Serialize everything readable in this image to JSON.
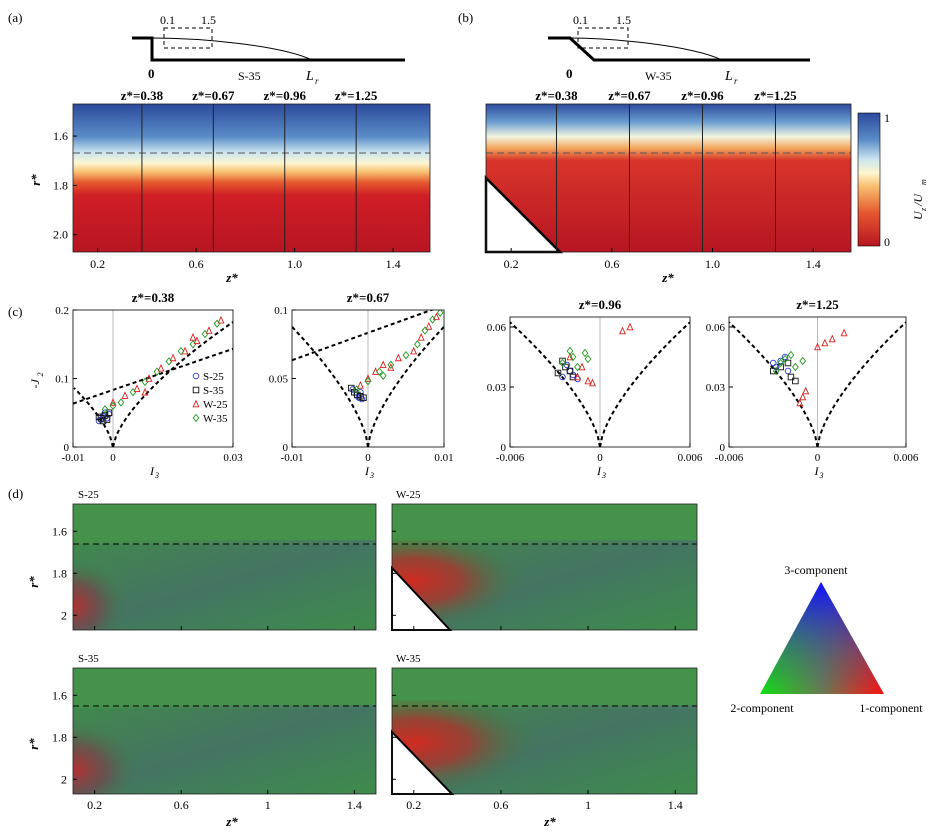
{
  "panel_labels": [
    "(a)",
    "(b)",
    "(c)",
    "(d)"
  ],
  "panel_a": {
    "sketch": {
      "zero": "0",
      "left_mark": "0.1",
      "right_mark": "1.5",
      "case": "S-35",
      "length": "L",
      "length_sub": "r"
    },
    "zstar_labels": [
      "z*=0.38",
      "z*=0.67",
      "z*=0.96",
      "z*=1.25"
    ],
    "xticks": [
      "0.2",
      "0.6",
      "1.0",
      "1.4"
    ],
    "yticks": [
      "1.6",
      "1.8",
      "2.0"
    ],
    "xlabel": "z*",
    "ylabel": "r*"
  },
  "panel_b": {
    "sketch": {
      "zero": "0",
      "left_mark": "0.1",
      "right_mark": "1.5",
      "case": "W-35",
      "length": "L",
      "length_sub": "r"
    },
    "zstar_labels": [
      "z*=0.38",
      "z*=0.67",
      "z*=0.96",
      "z*=1.25"
    ],
    "xticks": [
      "0.2",
      "0.6",
      "1.0",
      "1.4"
    ],
    "xlabel": "z*",
    "colorbar": {
      "ticks": [
        "1",
        "0"
      ],
      "label_main": "U",
      "label_sub1": "z",
      "label_mid": "/U",
      "label_sub2": "m"
    }
  },
  "panel_c": {
    "ylabel": "-J",
    "ylabel_sub": "2",
    "xlabel": "I",
    "xlabel_sub": "3",
    "legend": [
      "S-25",
      "S-35",
      "W-25",
      "W-35"
    ]
  },
  "panel_d": {
    "titles": [
      "S-25",
      "W-25",
      "S-35",
      "W-35"
    ],
    "xticks": [
      "0.2",
      "0.6",
      "1",
      "1.4"
    ],
    "yticks": [
      "1.6",
      "1.8",
      "2"
    ],
    "xlabel": "z*",
    "ylabel": "r*",
    "triangle_labels": {
      "top": "3-component",
      "left": "2-component",
      "right": "1-component"
    }
  },
  "chart_data": [
    {
      "type": "heatmap",
      "panel": "(a)",
      "case": "S-35",
      "xlabel": "z*",
      "ylabel": "r*",
      "xlim": [
        0.1,
        1.55
      ],
      "ylim": [
        2.07,
        1.47
      ],
      "dashed_line_r": 1.68,
      "profile_lines_z": [
        0.38,
        0.67,
        0.96,
        1.25
      ],
      "colorbar": {
        "label": "Uz/Um",
        "range": [
          0,
          1
        ]
      },
      "description_values": {
        "r_high_velocity": [
          1.47,
          1.62
        ],
        "r_transition": [
          1.65,
          1.8
        ],
        "r_low_velocity": [
          1.82,
          2.07
        ]
      }
    },
    {
      "type": "heatmap",
      "panel": "(b)",
      "case": "W-35",
      "xlabel": "z*",
      "ylabel": "r*",
      "xlim": [
        0.1,
        1.55
      ],
      "ylim": [
        2.07,
        1.47
      ],
      "dashed_line_r": 1.68,
      "profile_lines_z": [
        0.38,
        0.67,
        0.96,
        1.25
      ],
      "colorbar": {
        "label": "Uz/Um",
        "range": [
          0,
          1
        ]
      }
    },
    {
      "type": "scatter",
      "panel": "(c)",
      "title": "z*=0.38",
      "xlim": [
        -0.01,
        0.03
      ],
      "ylim": [
        0,
        0.2
      ],
      "xticks": [
        "-0.01",
        "0",
        "0.03"
      ],
      "yticks": [
        "0",
        "0.1",
        "0.2"
      ],
      "series": [
        {
          "name": "S-25",
          "color": "#2a3ad6",
          "marker": "circle",
          "points": [
            [
              -0.0025,
              0.045
            ],
            [
              -0.002,
              0.05
            ],
            [
              -0.0015,
              0.042
            ],
            [
              -0.003,
              0.04
            ],
            [
              -0.001,
              0.048
            ],
            [
              -0.0035,
              0.038
            ]
          ]
        },
        {
          "name": "S-35",
          "color": "#111111",
          "marker": "square",
          "points": [
            [
              -0.003,
              0.042
            ],
            [
              -0.002,
              0.046
            ],
            [
              -0.0015,
              0.04
            ],
            [
              -0.0035,
              0.044
            ],
            [
              -0.001,
              0.05
            ],
            [
              -0.0025,
              0.038
            ]
          ]
        },
        {
          "name": "W-25",
          "color": "#e02020",
          "marker": "triangle",
          "points": [
            [
              0.0,
              0.065
            ],
            [
              0.003,
              0.075
            ],
            [
              0.006,
              0.085
            ],
            [
              0.009,
              0.1
            ],
            [
              0.012,
              0.115
            ],
            [
              0.015,
              0.13
            ],
            [
              0.018,
              0.14
            ],
            [
              0.021,
              0.155
            ],
            [
              0.024,
              0.17
            ],
            [
              0.027,
              0.185
            ],
            [
              0.008,
              0.08
            ],
            [
              0.02,
              0.16
            ]
          ]
        },
        {
          "name": "W-35",
          "color": "#1e9a1e",
          "marker": "diamond",
          "points": [
            [
              -0.002,
              0.055
            ],
            [
              0.002,
              0.065
            ],
            [
              0.005,
              0.08
            ],
            [
              0.008,
              0.095
            ],
            [
              0.011,
              0.11
            ],
            [
              0.014,
              0.125
            ],
            [
              0.017,
              0.14
            ],
            [
              0.02,
              0.15
            ],
            [
              0.023,
              0.165
            ],
            [
              0.026,
              0.18
            ],
            [
              0.0,
              0.06
            ]
          ]
        }
      ]
    },
    {
      "type": "scatter",
      "panel": "(c)",
      "title": "z*=0.67",
      "xlim": [
        -0.01,
        0.01
      ],
      "ylim": [
        0,
        0.1
      ],
      "xticks": [
        "-0.01",
        "0",
        "0.01"
      ],
      "yticks": [
        "0",
        "0.05",
        "0.1"
      ],
      "series": [
        {
          "name": "S-25",
          "color": "#2a3ad6",
          "marker": "circle",
          "points": [
            [
              -0.0015,
              0.038
            ],
            [
              -0.0012,
              0.036
            ],
            [
              -0.001,
              0.04
            ],
            [
              -0.002,
              0.042
            ],
            [
              -0.0008,
              0.035
            ]
          ]
        },
        {
          "name": "S-35",
          "color": "#111111",
          "marker": "square",
          "points": [
            [
              -0.0018,
              0.04
            ],
            [
              -0.0014,
              0.038
            ],
            [
              -0.001,
              0.037
            ],
            [
              -0.0022,
              0.043
            ],
            [
              -0.0006,
              0.036
            ]
          ]
        },
        {
          "name": "W-25",
          "color": "#e02020",
          "marker": "triangle",
          "points": [
            [
              -0.001,
              0.045
            ],
            [
              0.0,
              0.05
            ],
            [
              0.001,
              0.055
            ],
            [
              0.002,
              0.06
            ],
            [
              0.004,
              0.065
            ],
            [
              0.006,
              0.07
            ],
            [
              0.007,
              0.08
            ],
            [
              0.008,
              0.088
            ],
            [
              0.009,
              0.095
            ],
            [
              0.003,
              0.058
            ]
          ]
        },
        {
          "name": "W-35",
          "color": "#1e9a1e",
          "marker": "diamond",
          "points": [
            [
              -0.0015,
              0.042
            ],
            [
              0.0,
              0.048
            ],
            [
              0.0015,
              0.055
            ],
            [
              0.003,
              0.06
            ],
            [
              0.005,
              0.067
            ],
            [
              0.0065,
              0.075
            ],
            [
              0.0075,
              0.085
            ],
            [
              0.0085,
              0.093
            ],
            [
              0.0095,
              0.098
            ],
            [
              0.002,
              0.052
            ]
          ]
        }
      ]
    },
    {
      "type": "scatter",
      "panel": "(c)",
      "title": "z*=0.96",
      "xlim": [
        -0.006,
        0.006
      ],
      "ylim": [
        0,
        0.065
      ],
      "xticks": [
        "-0.006",
        "0",
        "0.006"
      ],
      "yticks": [
        "0",
        "0.03",
        "0.06"
      ],
      "series": [
        {
          "name": "S-25",
          "color": "#2a3ad6",
          "marker": "circle",
          "points": [
            [
              -0.0025,
              0.035
            ],
            [
              -0.002,
              0.038
            ],
            [
              -0.0015,
              0.034
            ],
            [
              -0.0022,
              0.041
            ],
            [
              -0.0018,
              0.036
            ]
          ]
        },
        {
          "name": "S-35",
          "color": "#111111",
          "marker": "square",
          "points": [
            [
              -0.0028,
              0.037
            ],
            [
              -0.0023,
              0.04
            ],
            [
              -0.0018,
              0.035
            ],
            [
              -0.0025,
              0.043
            ],
            [
              -0.002,
              0.038
            ]
          ]
        },
        {
          "name": "W-25",
          "color": "#e02020",
          "marker": "triangle",
          "points": [
            [
              -0.0015,
              0.035
            ],
            [
              -0.0008,
              0.033
            ],
            [
              -0.0012,
              0.04
            ],
            [
              -0.002,
              0.045
            ],
            [
              0.0015,
              0.058
            ],
            [
              0.002,
              0.06
            ],
            [
              -0.0005,
              0.032
            ]
          ]
        },
        {
          "name": "W-35",
          "color": "#1e9a1e",
          "marker": "diamond",
          "points": [
            [
              -0.0025,
              0.042
            ],
            [
              -0.0018,
              0.045
            ],
            [
              -0.001,
              0.047
            ],
            [
              -0.0015,
              0.04
            ],
            [
              -0.002,
              0.048
            ],
            [
              -0.0008,
              0.044
            ]
          ]
        }
      ]
    },
    {
      "type": "scatter",
      "panel": "(c)",
      "title": "z*=1.25",
      "xlim": [
        -0.006,
        0.006
      ],
      "ylim": [
        0,
        0.065
      ],
      "xticks": [
        "-0.006",
        "0",
        "0.006"
      ],
      "yticks": [
        "0",
        "0.03",
        "0.06"
      ],
      "series": [
        {
          "name": "S-25",
          "color": "#2a3ad6",
          "marker": "circle",
          "points": [
            [
              -0.0028,
              0.04
            ],
            [
              -0.0025,
              0.043
            ],
            [
              -0.0022,
              0.045
            ],
            [
              -0.003,
              0.042
            ],
            [
              -0.002,
              0.038
            ]
          ]
        },
        {
          "name": "S-35",
          "color": "#111111",
          "marker": "square",
          "points": [
            [
              -0.003,
              0.038
            ],
            [
              -0.0025,
              0.04
            ],
            [
              -0.002,
              0.042
            ],
            [
              -0.0018,
              0.035
            ],
            [
              -0.0015,
              0.033
            ]
          ]
        },
        {
          "name": "W-25",
          "color": "#e02020",
          "marker": "triangle",
          "points": [
            [
              -0.0012,
              0.022
            ],
            [
              -0.001,
              0.025
            ],
            [
              0.0,
              0.05
            ],
            [
              0.0005,
              0.052
            ],
            [
              0.001,
              0.054
            ],
            [
              0.0018,
              0.057
            ],
            [
              -0.0008,
              0.028
            ]
          ]
        },
        {
          "name": "W-35",
          "color": "#1e9a1e",
          "marker": "diamond",
          "points": [
            [
              -0.0028,
              0.038
            ],
            [
              -0.0022,
              0.044
            ],
            [
              -0.0018,
              0.046
            ],
            [
              -0.0015,
              0.04
            ],
            [
              -0.0025,
              0.042
            ],
            [
              -0.001,
              0.043
            ]
          ]
        }
      ]
    },
    {
      "type": "heatmap",
      "panel": "(d)",
      "xlabel": "z*",
      "ylabel": "r*",
      "xlim": [
        0.1,
        1.5
      ],
      "ylim": [
        2.07,
        1.47
      ],
      "dashed_line_r": 1.69,
      "maps": [
        "S-25",
        "W-25",
        "S-35",
        "W-35"
      ],
      "colorscale": "barycentric: 3-component=blue, 2-component=green, 1-component=red"
    }
  ]
}
